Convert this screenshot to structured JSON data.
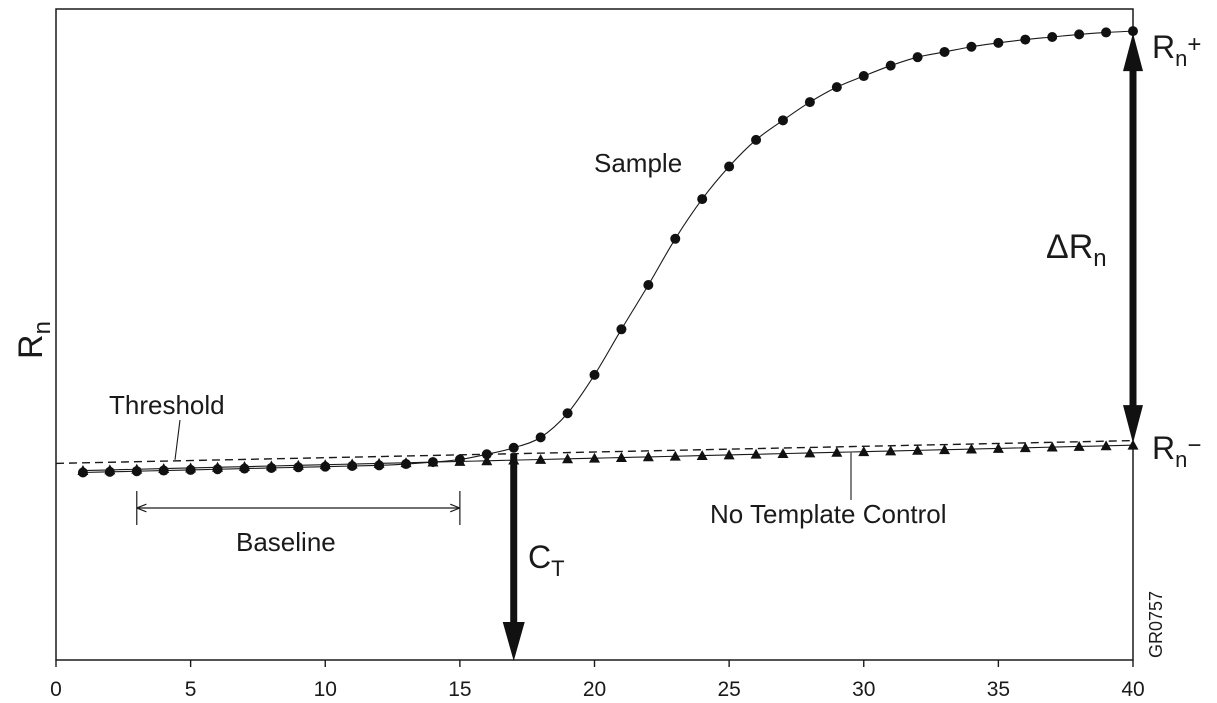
{
  "chart_data": {
    "type": "line",
    "xlabel": "",
    "ylabel": "R",
    "ylabel_sub": "n",
    "xlim": [
      0,
      40
    ],
    "ylim": [
      0,
      100
    ],
    "xticks": [
      0,
      5,
      10,
      15,
      20,
      25,
      30,
      35,
      40
    ],
    "grid": false,
    "series": [
      {
        "name": "Sample",
        "marker": "circle",
        "x": [
          1,
          2,
          3,
          4,
          5,
          6,
          7,
          8,
          9,
          10,
          11,
          12,
          13,
          14,
          15,
          16,
          17,
          18,
          19,
          20,
          21,
          22,
          23,
          24,
          25,
          26,
          27,
          28,
          29,
          30,
          31,
          32,
          33,
          34,
          35,
          36,
          37,
          38,
          39,
          40
        ],
        "y": [
          28.8,
          28.9,
          29.0,
          29.1,
          29.2,
          29.3,
          29.4,
          29.5,
          29.6,
          29.7,
          29.8,
          29.9,
          30.1,
          30.4,
          30.8,
          31.6,
          32.6,
          34.2,
          37.9,
          43.8,
          50.8,
          57.6,
          64.7,
          70.8,
          75.8,
          79.9,
          82.9,
          85.7,
          88.0,
          89.7,
          91.3,
          92.6,
          93.4,
          94.2,
          94.8,
          95.3,
          95.7,
          96.1,
          96.4,
          96.6
        ]
      },
      {
        "name": "No Template Control",
        "marker": "triangle",
        "x": [
          1,
          2,
          3,
          4,
          5,
          6,
          7,
          8,
          9,
          10,
          11,
          12,
          13,
          14,
          15,
          16,
          17,
          18,
          19,
          20,
          21,
          22,
          23,
          24,
          25,
          26,
          27,
          28,
          29,
          30,
          31,
          32,
          33,
          34,
          35,
          36,
          37,
          38,
          39,
          40
        ],
        "y": [
          29.1,
          29.2,
          29.3,
          29.4,
          29.5,
          29.6,
          29.7,
          29.8,
          29.9,
          30.0,
          30.1,
          30.2,
          30.3,
          30.4,
          30.5,
          30.6,
          30.7,
          30.8,
          30.9,
          31.0,
          31.1,
          31.2,
          31.3,
          31.4,
          31.5,
          31.6,
          31.7,
          31.8,
          31.9,
          32.0,
          32.1,
          32.2,
          32.3,
          32.4,
          32.5,
          32.6,
          32.7,
          32.8,
          32.9,
          33.0
        ]
      }
    ],
    "threshold": {
      "x": [
        0,
        40
      ],
      "y": [
        30.2,
        33.7
      ]
    },
    "baseline_range": [
      3,
      15
    ],
    "ct_x": 17,
    "rn_plus": 96.6,
    "rn_minus": 33.0,
    "labels": {
      "sample": "Sample",
      "threshold": "Threshold",
      "baseline": "Baseline",
      "ntc": "No Template Control",
      "ct_main": "C",
      "ct_sub": "T",
      "delta_main": "ΔR",
      "delta_sub": "n",
      "rn_plus_main": "R",
      "rn_plus_sub": "n",
      "rn_plus_sup": "+",
      "rn_minus_main": "R",
      "rn_minus_sub": "n",
      "rn_minus_sup": "−",
      "code": "GR0757"
    }
  }
}
